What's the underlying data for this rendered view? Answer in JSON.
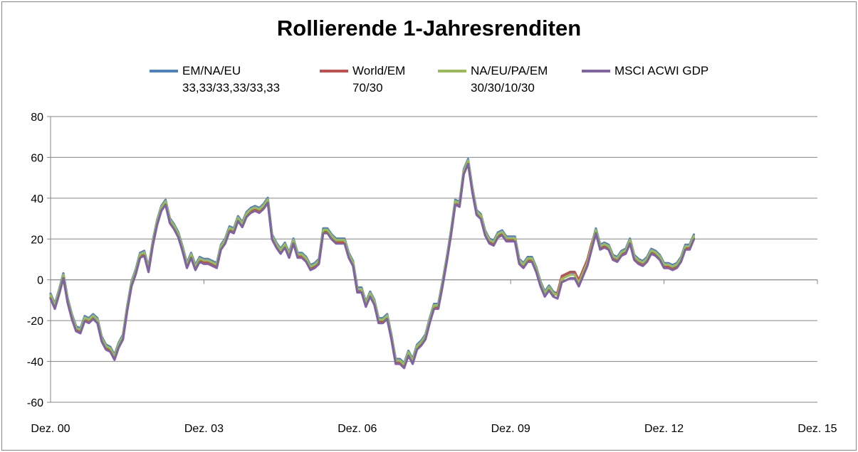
{
  "chart_data": {
    "type": "line",
    "title": "Rollierende 1-Jahresrenditen",
    "xlabel": "",
    "ylabel": "",
    "ylim": [
      -60,
      80
    ],
    "yticks": [
      -60,
      -40,
      -20,
      0,
      20,
      40,
      60,
      80
    ],
    "x_tick_labels": [
      "Dez. 00",
      "Dez. 03",
      "Dez. 06",
      "Dez. 09",
      "Dez. 12",
      "Dez. 15"
    ],
    "x_unit": "Monate seit Dez. 00",
    "xlim": [
      0,
      180
    ],
    "grid": "horizontal",
    "legend_position": "top",
    "series": [
      {
        "name": "EM/NA/EU 33,33/33,33/33,33",
        "legend_lines": [
          "EM/NA/EU",
          "33,33/33,33/33,33"
        ],
        "color": "#4f81bd",
        "offset": 1.2
      },
      {
        "name": "World/EM 70/30",
        "legend_lines": [
          "World/EM",
          "70/30"
        ],
        "color": "#c0504d",
        "offset": -0.6
      },
      {
        "name": "NA/EU/PA/EM 30/30/10/30",
        "legend_lines": [
          "NA/EU/PA/EM",
          "30/30/10/30"
        ],
        "color": "#9bbb59",
        "offset": 0.5
      },
      {
        "name": "MSCI ACWI GDP",
        "legend_lines": [
          "MSCI ACWI GDP"
        ],
        "color": "#8064a2",
        "offset": -1.2
      }
    ],
    "base_points": [
      [
        0,
        -8
      ],
      [
        1,
        -13
      ],
      [
        2,
        -6
      ],
      [
        3,
        2
      ],
      [
        4,
        -10
      ],
      [
        5,
        -18
      ],
      [
        6,
        -24
      ],
      [
        7,
        -25
      ],
      [
        8,
        -19
      ],
      [
        9,
        -20
      ],
      [
        10,
        -18
      ],
      [
        11,
        -20
      ],
      [
        12,
        -29
      ],
      [
        13,
        -33
      ],
      [
        14,
        -34
      ],
      [
        15,
        -38
      ],
      [
        16,
        -32
      ],
      [
        17,
        -28
      ],
      [
        18,
        -14
      ],
      [
        19,
        -2
      ],
      [
        20,
        4
      ],
      [
        21,
        12
      ],
      [
        22,
        13
      ],
      [
        23,
        5
      ],
      [
        24,
        18
      ],
      [
        25,
        28
      ],
      [
        26,
        35
      ],
      [
        27,
        38
      ],
      [
        28,
        29
      ],
      [
        29,
        26
      ],
      [
        30,
        22
      ],
      [
        31,
        15
      ],
      [
        32,
        7
      ],
      [
        33,
        12
      ],
      [
        34,
        6
      ],
      [
        35,
        10
      ],
      [
        36,
        9
      ],
      [
        37,
        9
      ],
      [
        38,
        8
      ],
      [
        39,
        7
      ],
      [
        40,
        16
      ],
      [
        41,
        19
      ],
      [
        42,
        25
      ],
      [
        43,
        24
      ],
      [
        44,
        30
      ],
      [
        45,
        27
      ],
      [
        46,
        32
      ],
      [
        47,
        34
      ],
      [
        48,
        35
      ],
      [
        49,
        34
      ],
      [
        50,
        36
      ],
      [
        51,
        39
      ],
      [
        52,
        21
      ],
      [
        53,
        17
      ],
      [
        54,
        14
      ],
      [
        55,
        17
      ],
      [
        56,
        12
      ],
      [
        57,
        19
      ],
      [
        58,
        12
      ],
      [
        59,
        12
      ],
      [
        60,
        10
      ],
      [
        61,
        6
      ],
      [
        62,
        7
      ],
      [
        63,
        9
      ],
      [
        64,
        24
      ],
      [
        65,
        24
      ],
      [
        66,
        21
      ],
      [
        67,
        19
      ],
      [
        68,
        19
      ],
      [
        69,
        19
      ],
      [
        70,
        12
      ],
      [
        71,
        8
      ],
      [
        72,
        -5
      ],
      [
        73,
        -5
      ],
      [
        74,
        -12
      ],
      [
        75,
        -7
      ],
      [
        76,
        -11
      ],
      [
        77,
        -20
      ],
      [
        78,
        -20
      ],
      [
        79,
        -18
      ],
      [
        80,
        -28
      ],
      [
        81,
        -40
      ],
      [
        82,
        -40
      ],
      [
        83,
        -42
      ],
      [
        84,
        -36
      ],
      [
        85,
        -40
      ],
      [
        86,
        -33
      ],
      [
        87,
        -31
      ],
      [
        88,
        -28
      ],
      [
        89,
        -20
      ],
      [
        90,
        -13
      ],
      [
        91,
        -13
      ],
      [
        92,
        -2
      ],
      [
        93,
        10
      ],
      [
        94,
        23
      ],
      [
        95,
        38
      ],
      [
        96,
        37
      ],
      [
        97,
        53
      ],
      [
        98,
        58
      ],
      [
        99,
        44
      ],
      [
        100,
        33
      ],
      [
        101,
        31
      ],
      [
        102,
        23
      ],
      [
        103,
        19
      ],
      [
        104,
        18
      ],
      [
        105,
        22
      ],
      [
        106,
        23
      ],
      [
        107,
        20
      ],
      [
        108,
        20
      ],
      [
        109,
        20
      ],
      [
        110,
        9
      ],
      [
        111,
        7
      ],
      [
        112,
        10
      ],
      [
        113,
        10
      ],
      [
        114,
        5
      ],
      [
        115,
        -2
      ],
      [
        116,
        -7
      ],
      [
        117,
        -4
      ],
      [
        118,
        -7
      ],
      [
        119,
        -8
      ],
      [
        120,
        0
      ],
      [
        121,
        1
      ],
      [
        122,
        2
      ],
      [
        123,
        2
      ],
      [
        124,
        -2
      ],
      [
        125,
        3
      ],
      [
        126,
        8
      ],
      [
        127,
        16
      ],
      [
        128,
        24
      ],
      [
        129,
        16
      ],
      [
        130,
        17
      ],
      [
        131,
        16
      ],
      [
        132,
        11
      ],
      [
        133,
        10
      ],
      [
        134,
        13
      ],
      [
        135,
        14
      ],
      [
        136,
        19
      ],
      [
        137,
        11
      ],
      [
        138,
        9
      ],
      [
        139,
        8
      ],
      [
        140,
        10
      ],
      [
        141,
        14
      ],
      [
        142,
        13
      ],
      [
        143,
        11
      ],
      [
        144,
        7
      ],
      [
        145,
        7
      ],
      [
        146,
        6
      ],
      [
        147,
        7
      ],
      [
        148,
        10
      ],
      [
        149,
        16
      ],
      [
        150,
        16
      ],
      [
        151,
        21
      ]
    ]
  }
}
